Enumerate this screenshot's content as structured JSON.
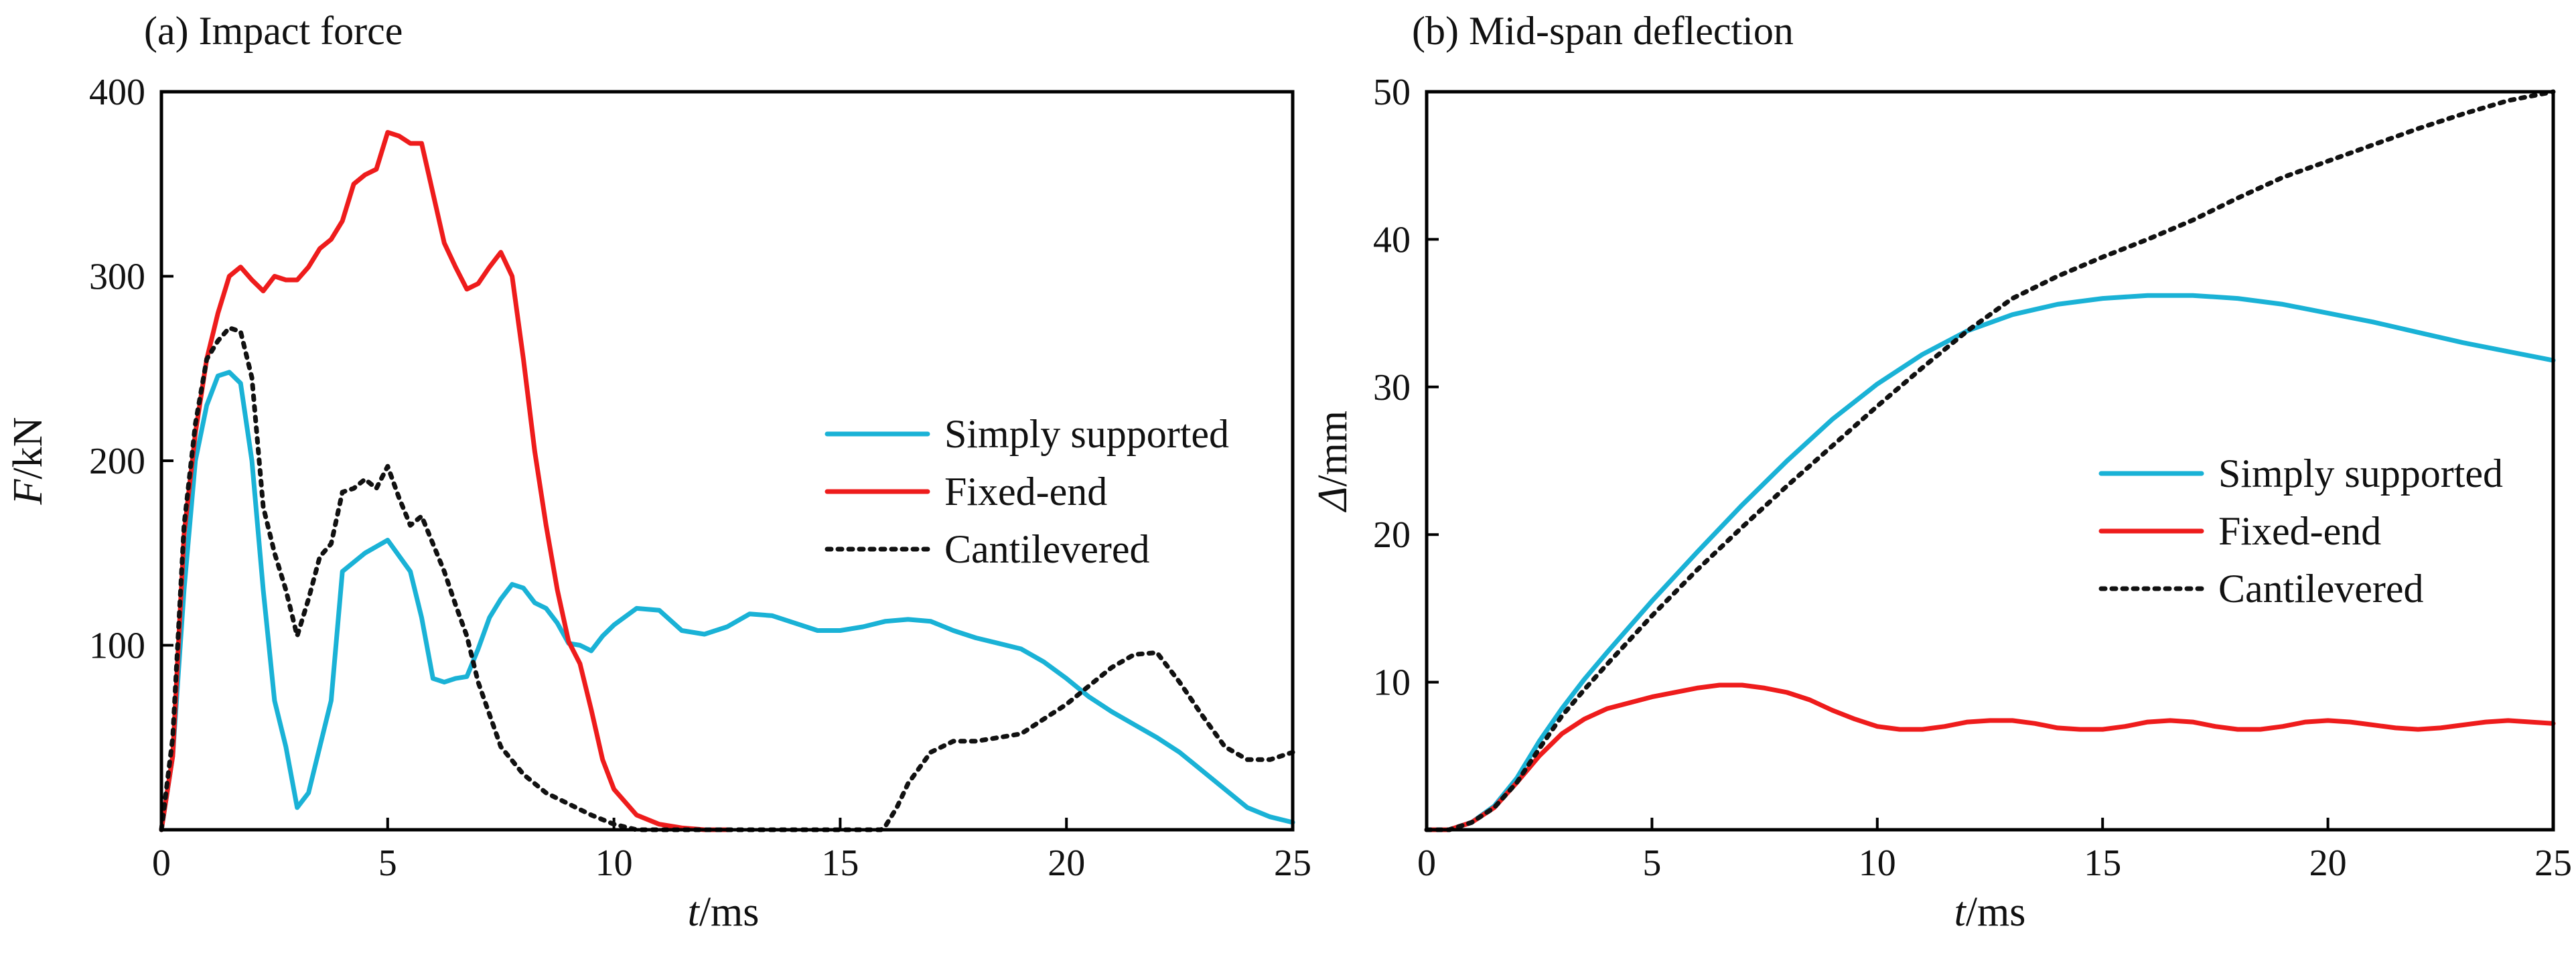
{
  "chart_data": [
    {
      "type": "line",
      "title": "(a) Impact force",
      "xlabel": {
        "italic": "t",
        "rest": "/ms"
      },
      "ylabel": {
        "italic": "F",
        "rest": "/kN"
      },
      "xlim": [
        0,
        25
      ],
      "ylim": [
        0,
        400
      ],
      "xticks": [
        0,
        5,
        10,
        15,
        20,
        25
      ],
      "yticks": [
        100,
        200,
        300,
        400
      ],
      "grid": false,
      "legend_position": "right",
      "series": [
        {
          "name": "Simply supported",
          "color": "#1ab2d6",
          "style": "solid",
          "x": [
            0,
            0.25,
            0.5,
            0.75,
            1.0,
            1.25,
            1.5,
            1.75,
            2.0,
            2.25,
            2.5,
            2.75,
            3.0,
            3.25,
            3.5,
            3.75,
            4.0,
            4.5,
            5.0,
            5.5,
            5.75,
            6.0,
            6.25,
            6.5,
            6.75,
            7.0,
            7.25,
            7.5,
            7.75,
            8.0,
            8.25,
            8.5,
            8.75,
            9.0,
            9.25,
            9.5,
            9.75,
            10.0,
            10.5,
            11.0,
            11.5,
            12.0,
            12.5,
            13.0,
            13.5,
            14.0,
            14.5,
            15.0,
            15.5,
            16.0,
            16.5,
            17.0,
            17.5,
            18.0,
            18.5,
            19.0,
            19.5,
            20.0,
            20.5,
            21.0,
            21.5,
            22.0,
            22.5,
            23.0,
            23.5,
            24.0,
            24.5,
            25.0
          ],
          "values": [
            0,
            40,
            130,
            200,
            230,
            246,
            248,
            242,
            200,
            130,
            70,
            45,
            12,
            20,
            45,
            70,
            140,
            150,
            157,
            140,
            115,
            82,
            80,
            82,
            83,
            98,
            115,
            125,
            133,
            131,
            123,
            120,
            112,
            101,
            100,
            97,
            105,
            111,
            120,
            119,
            108,
            106,
            110,
            117,
            116,
            112,
            108,
            108,
            110,
            113,
            114,
            113,
            108,
            104,
            101,
            98,
            91,
            82,
            72,
            64,
            57,
            50,
            42,
            32,
            22,
            12,
            7,
            4
          ]
        },
        {
          "name": "Fixed-end",
          "color": "#ee1c1c",
          "style": "solid",
          "x": [
            0,
            0.25,
            0.5,
            0.75,
            1.0,
            1.25,
            1.5,
            1.75,
            2.0,
            2.25,
            2.5,
            2.75,
            3.0,
            3.25,
            3.5,
            3.75,
            4.0,
            4.25,
            4.5,
            4.75,
            5.0,
            5.25,
            5.5,
            5.75,
            6.0,
            6.25,
            6.5,
            6.75,
            7.0,
            7.25,
            7.5,
            7.75,
            8.0,
            8.25,
            8.5,
            8.75,
            9.0,
            9.25,
            9.5,
            9.75,
            10.0,
            10.5,
            11.0,
            11.5,
            12.0,
            12.5
          ],
          "values": [
            0,
            40,
            160,
            215,
            255,
            280,
            300,
            305,
            298,
            292,
            300,
            298,
            298,
            305,
            315,
            320,
            330,
            350,
            355,
            358,
            378,
            376,
            372,
            372,
            345,
            318,
            305,
            293,
            296,
            305,
            313,
            300,
            255,
            205,
            165,
            130,
            102,
            90,
            65,
            38,
            22,
            8,
            3,
            1,
            0,
            0
          ]
        },
        {
          "name": "Cantilevered",
          "color": "#111111",
          "style": "dotted",
          "x": [
            0,
            0.25,
            0.5,
            0.75,
            1.0,
            1.25,
            1.5,
            1.75,
            2.0,
            2.25,
            2.5,
            2.75,
            3.0,
            3.25,
            3.5,
            3.75,
            4.0,
            4.25,
            4.5,
            4.75,
            5.0,
            5.25,
            5.5,
            5.75,
            6.0,
            6.25,
            6.5,
            6.75,
            7.0,
            7.5,
            8.0,
            8.5,
            9.0,
            9.5,
            10.0,
            10.5,
            11.0,
            11.5,
            12.0,
            12.5,
            13.0,
            13.5,
            14.0,
            14.5,
            15.0,
            15.5,
            15.9,
            16.0,
            16.25,
            16.5,
            17.0,
            17.5,
            18.0,
            18.5,
            19.0,
            19.5,
            20.0,
            20.5,
            21.0,
            21.5,
            22.0,
            22.5,
            23.0,
            23.5,
            24.0,
            24.5,
            25.0
          ],
          "values": [
            0,
            50,
            165,
            220,
            255,
            265,
            272,
            270,
            245,
            175,
            150,
            130,
            105,
            125,
            148,
            155,
            183,
            185,
            190,
            185,
            197,
            180,
            165,
            170,
            155,
            140,
            122,
            105,
            80,
            45,
            30,
            20,
            14,
            8,
            3,
            0,
            0,
            0,
            0,
            0,
            0,
            0,
            0,
            0,
            0,
            0,
            0,
            2,
            12,
            25,
            42,
            48,
            48,
            50,
            52,
            60,
            68,
            78,
            88,
            95,
            96,
            80,
            62,
            45,
            38,
            38,
            42
          ]
        }
      ]
    },
    {
      "type": "line",
      "title": "(b) Mid-span deflection",
      "xlabel": {
        "italic": "t",
        "rest": "/ms"
      },
      "ylabel": {
        "italic": "Δ",
        "rest": "/mm"
      },
      "xlim": [
        0,
        25
      ],
      "ylim": [
        0,
        50
      ],
      "xticks": [
        0,
        5,
        10,
        15,
        20,
        25
      ],
      "yticks": [
        10,
        20,
        30,
        40,
        50
      ],
      "grid": false,
      "legend_position": "right",
      "series": [
        {
          "name": "Simply supported",
          "color": "#1ab2d6",
          "style": "solid",
          "x": [
            0,
            0.5,
            1.0,
            1.5,
            2.0,
            2.5,
            3.0,
            3.5,
            4.0,
            5.0,
            6.0,
            7.0,
            8.0,
            9.0,
            10.0,
            11.0,
            12.0,
            13.0,
            14.0,
            15.0,
            16.0,
            17.0,
            18.0,
            19.0,
            20.0,
            21.0,
            22.0,
            23.0,
            24.0,
            25.0
          ],
          "values": [
            0,
            0,
            0.5,
            1.6,
            3.5,
            6.0,
            8.2,
            10.2,
            12.0,
            15.5,
            18.8,
            22.0,
            25.0,
            27.8,
            30.2,
            32.2,
            33.8,
            34.9,
            35.6,
            36.0,
            36.2,
            36.2,
            36.0,
            35.6,
            35.0,
            34.4,
            33.7,
            33.0,
            32.4,
            31.8
          ]
        },
        {
          "name": "Fixed-end",
          "color": "#ee1c1c",
          "style": "solid",
          "x": [
            0,
            0.5,
            1.0,
            1.5,
            2.0,
            2.5,
            3.0,
            3.5,
            4.0,
            5.0,
            6.0,
            6.5,
            7.0,
            7.5,
            8.0,
            8.5,
            9.0,
            9.5,
            10.0,
            10.5,
            11.0,
            11.5,
            12.0,
            12.5,
            13.0,
            13.5,
            14.0,
            14.5,
            15.0,
            15.5,
            16.0,
            16.5,
            17.0,
            17.5,
            18.0,
            18.5,
            19.0,
            19.5,
            20.0,
            20.5,
            21.0,
            21.5,
            22.0,
            22.5,
            23.0,
            23.5,
            24.0,
            24.5,
            25.0
          ],
          "values": [
            0,
            0,
            0.5,
            1.5,
            3.2,
            5.0,
            6.5,
            7.5,
            8.2,
            9.0,
            9.6,
            9.8,
            9.8,
            9.6,
            9.3,
            8.8,
            8.1,
            7.5,
            7.0,
            6.8,
            6.8,
            7.0,
            7.3,
            7.4,
            7.4,
            7.2,
            6.9,
            6.8,
            6.8,
            7.0,
            7.3,
            7.4,
            7.3,
            7.0,
            6.8,
            6.8,
            7.0,
            7.3,
            7.4,
            7.3,
            7.1,
            6.9,
            6.8,
            6.9,
            7.1,
            7.3,
            7.4,
            7.3,
            7.2
          ]
        },
        {
          "name": "Cantilevered",
          "color": "#111111",
          "style": "dotted",
          "x": [
            0,
            0.5,
            1.0,
            1.5,
            2.0,
            2.5,
            3.0,
            3.5,
            4.0,
            5.0,
            6.0,
            7.0,
            8.0,
            9.0,
            10.0,
            11.0,
            12.0,
            13.0,
            14.0,
            15.0,
            16.0,
            17.0,
            18.0,
            19.0,
            20.0,
            21.0,
            22.0,
            23.0,
            24.0,
            25.0
          ],
          "values": [
            0,
            0,
            0.5,
            1.5,
            3.2,
            5.5,
            7.7,
            9.5,
            11.2,
            14.5,
            17.6,
            20.5,
            23.3,
            26.0,
            28.7,
            31.3,
            33.8,
            36.0,
            37.5,
            38.8,
            40.0,
            41.3,
            42.8,
            44.2,
            45.3,
            46.4,
            47.5,
            48.5,
            49.4,
            50.0
          ]
        }
      ]
    }
  ]
}
